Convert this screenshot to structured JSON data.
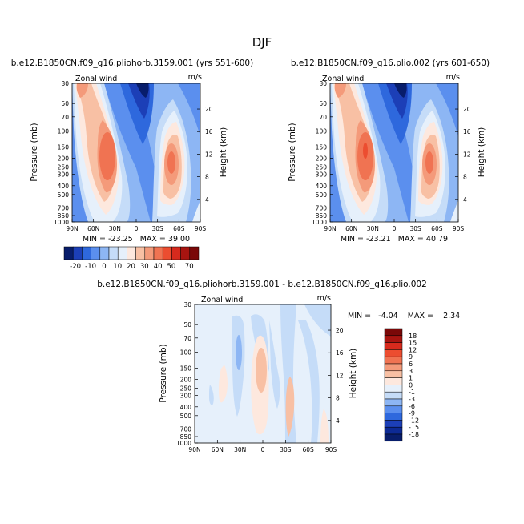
{
  "page": {
    "title": "DJF"
  },
  "chart_data": [
    {
      "type": "contour",
      "id": "p1",
      "title": "b.e12.B1850CN.f09_g16.pliohorb.3159.001 (yrs 551-600)",
      "left_label": "Zonal wind",
      "units": "m/s",
      "ylabel": "Pressure (mb)",
      "ylabel_right": "Height (km)",
      "x_ticks": [
        "90N",
        "60N",
        "30N",
        "0",
        "30S",
        "60S",
        "90S"
      ],
      "y_ticks": [
        "30",
        "50",
        "70",
        "100",
        "150",
        "200",
        "250",
        "300",
        "400",
        "500",
        "700",
        "850",
        "1000"
      ],
      "y_ticks_right": [
        "20",
        "16",
        "12",
        "8",
        "4"
      ],
      "stats": "MIN = -23.25   MAX = 39.00",
      "min": -23.25,
      "max": 39.0
    },
    {
      "type": "contour",
      "id": "p2",
      "title": "b.e12.B1850CN.f09_g16.plio.002 (yrs 601-650)",
      "left_label": "Zonal wind",
      "units": "m/s",
      "ylabel": "Pressure (mb)",
      "ylabel_right": "Height (km)",
      "x_ticks": [
        "90N",
        "60N",
        "30N",
        "0",
        "30S",
        "60S",
        "90S"
      ],
      "y_ticks": [
        "30",
        "50",
        "70",
        "100",
        "150",
        "200",
        "250",
        "300",
        "400",
        "500",
        "700",
        "850",
        "1000"
      ],
      "y_ticks_right": [
        "20",
        "16",
        "12",
        "8",
        "4"
      ],
      "stats": "MIN = -23.21   MAX = 40.79",
      "min": -23.21,
      "max": 40.79
    },
    {
      "type": "contour",
      "id": "p3",
      "title": "b.e12.B1850CN.f09_g16.pliohorb.3159.001 - b.e12.B1850CN.f09_g16.plio.002",
      "left_label": "Zonal wind",
      "units": "m/s",
      "ylabel": "Pressure (mb)",
      "ylabel_right": "Height (km)",
      "x_ticks": [
        "90N",
        "60N",
        "30N",
        "0",
        "30S",
        "60S",
        "90S"
      ],
      "y_ticks": [
        "30",
        "50",
        "70",
        "100",
        "150",
        "200",
        "250",
        "300",
        "400",
        "500",
        "700",
        "850",
        "1000"
      ],
      "y_ticks_right": [
        "20",
        "16",
        "12",
        "8",
        "4"
      ],
      "stats": "MIN =   -4.04    MAX =    2.34",
      "min": -4.04,
      "max": 2.34
    }
  ],
  "colorbar_top": {
    "labels": [
      "-20",
      "-10",
      "0",
      "10",
      "20",
      "30",
      "40",
      "50",
      "70"
    ],
    "colors": [
      "#081d6b",
      "#1c3fb7",
      "#2e68dd",
      "#5b8fee",
      "#8db6f4",
      "#c5dcf8",
      "#e6f0fb",
      "#fde8de",
      "#f8c0a4",
      "#f49a7a",
      "#f07352",
      "#ec4d30",
      "#d72a1d",
      "#a81410",
      "#7a0808"
    ]
  },
  "colorbar_diff": {
    "labels": [
      "18",
      "15",
      "12",
      "9",
      "6",
      "3",
      "1",
      "0",
      "-1",
      "-3",
      "-6",
      "-9",
      "-12",
      "-15",
      "-18"
    ],
    "colors": [
      "#7a0808",
      "#a81410",
      "#d72a1d",
      "#ec4d30",
      "#f07352",
      "#f49a7a",
      "#f8c0a4",
      "#fde8de",
      "#e6f0fb",
      "#c5dcf8",
      "#8db6f4",
      "#5b8fee",
      "#2e68dd",
      "#1c3fb7",
      "#0d2a94",
      "#081d6b"
    ]
  }
}
